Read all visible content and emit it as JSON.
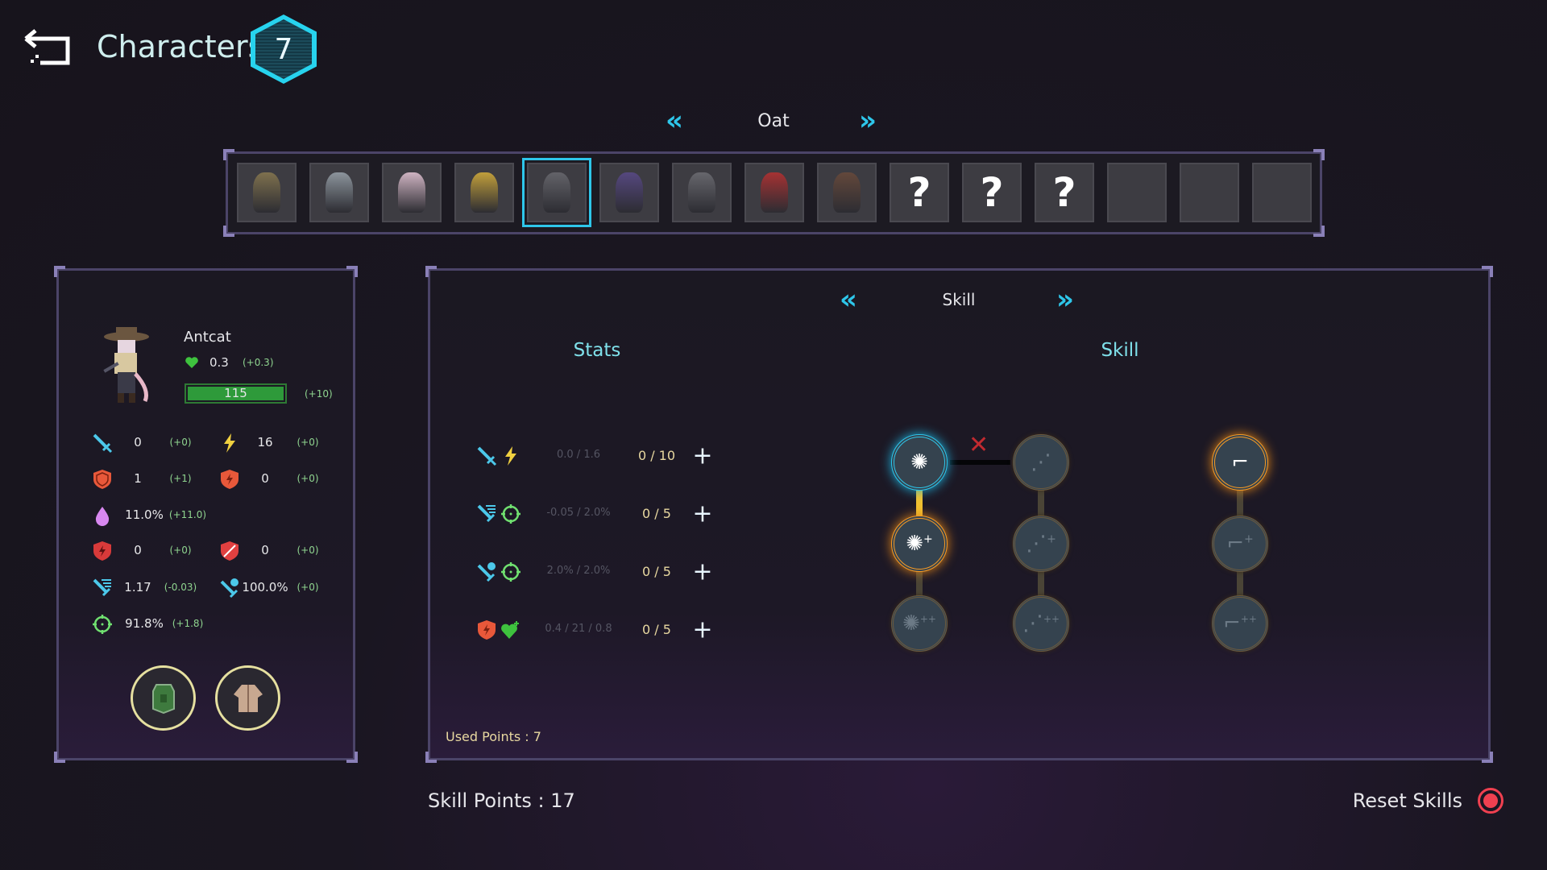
{
  "header": {
    "title": "Characters",
    "count": "7",
    "back_icon": "back-arrow-icon"
  },
  "roster": {
    "name": "Oat",
    "selected_index": 4,
    "slots": [
      {
        "state": "character",
        "color": "#8a7a50"
      },
      {
        "state": "character",
        "color": "#9aa4ac"
      },
      {
        "state": "character",
        "color": "#e8c8d8"
      },
      {
        "state": "character",
        "color": "#d8b03a"
      },
      {
        "state": "character",
        "color": "#6a6a70"
      },
      {
        "state": "character",
        "color": "#5a4a8a"
      },
      {
        "state": "character",
        "color": "#6e6e74"
      },
      {
        "state": "character",
        "color": "#b83030"
      },
      {
        "state": "character",
        "color": "#6a4a3a"
      },
      {
        "state": "locked",
        "label": "?"
      },
      {
        "state": "locked",
        "label": "?"
      },
      {
        "state": "locked",
        "label": "?"
      },
      {
        "state": "empty"
      },
      {
        "state": "empty"
      },
      {
        "state": "empty"
      }
    ]
  },
  "character": {
    "name": "Antcat",
    "regen": "0.3",
    "regen_bonus": "(+0.3)",
    "hp": "115",
    "hp_bonus": "(+10)",
    "stats": [
      {
        "icon": "sword",
        "value": "0",
        "bonus": "(+0)",
        "row": 0,
        "col": 0
      },
      {
        "icon": "bolt",
        "value": "16",
        "bonus": "(+0)",
        "row": 0,
        "col": 1
      },
      {
        "icon": "shield",
        "value": "1",
        "bonus": "(+1)",
        "row": 1,
        "col": 0
      },
      {
        "icon": "shield-bolt",
        "value": "0",
        "bonus": "(+0)",
        "row": 1,
        "col": 1
      },
      {
        "icon": "drop",
        "value": "11.0%",
        "bonus": "(+11.0)",
        "row": 2,
        "col": 0
      },
      {
        "icon": "shield-break",
        "value": "0",
        "bonus": "(+0)",
        "row": 3,
        "col": 0
      },
      {
        "icon": "shield-slash",
        "value": "0",
        "bonus": "(+0)",
        "row": 3,
        "col": 1
      },
      {
        "icon": "sword-speed",
        "value": "1.17",
        "bonus": "(-0.03)",
        "row": 4,
        "col": 0
      },
      {
        "icon": "sword-crit",
        "value": "100.0%",
        "bonus": "(+0)",
        "row": 4,
        "col": 1
      },
      {
        "icon": "crosshair",
        "value": "91.8%",
        "bonus": "(+1.8)",
        "row": 5,
        "col": 0
      }
    ],
    "equipment": [
      "armor-plate-icon",
      "cloak-icon"
    ]
  },
  "panel": {
    "tab": "Skill",
    "stats_header": "Stats",
    "skill_header": "Skill",
    "upgrades": [
      {
        "icons": [
          "sword",
          "bolt"
        ],
        "values": "0.0 / 1.6",
        "level": "0 / 10"
      },
      {
        "icons": [
          "sword-speed",
          "crosshair"
        ],
        "values": "-0.05 / 2.0%",
        "level": "0 / 5"
      },
      {
        "icons": [
          "sword-crit",
          "crosshair"
        ],
        "values": "2.0% / 2.0%",
        "level": "0 / 5"
      },
      {
        "icons": [
          "shield-bolt",
          "heart"
        ],
        "values": "0.4 / 21 / 0.8",
        "level": "0 / 5"
      }
    ],
    "skill_tree": [
      {
        "col": 0,
        "row": 0,
        "state": "active-blue",
        "icon": "burst"
      },
      {
        "col": 0,
        "row": 1,
        "state": "active-orange",
        "icon": "burst-plus"
      },
      {
        "col": 0,
        "row": 2,
        "state": "locked",
        "icon": "burst-plus-plus"
      },
      {
        "col": 1,
        "row": 0,
        "state": "locked",
        "icon": "multishot"
      },
      {
        "col": 1,
        "row": 1,
        "state": "locked",
        "icon": "multishot-plus"
      },
      {
        "col": 1,
        "row": 2,
        "state": "locked",
        "icon": "multishot-plus-plus"
      },
      {
        "col": 2,
        "row": 0,
        "state": "active-orange",
        "icon": "dual-pistols"
      },
      {
        "col": 2,
        "row": 1,
        "state": "locked",
        "icon": "dual-pistols-plus"
      },
      {
        "col": 2,
        "row": 2,
        "state": "locked",
        "icon": "dual-pistols-plus-plus"
      }
    ],
    "used_points": "Used Points : 7"
  },
  "footer": {
    "skill_points": "Skill Points : 17",
    "reset": "Reset Skills"
  },
  "colors": {
    "accent": "#2ec6ea",
    "orange": "#f59a25",
    "hp": "#2e9a3a",
    "gold": "#e8d8a0"
  }
}
